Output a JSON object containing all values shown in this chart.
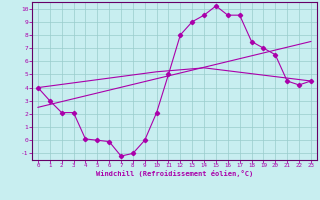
{
  "xlabel": "Windchill (Refroidissement éolien,°C)",
  "bg_color": "#c8eef0",
  "line_color": "#aa00aa",
  "grid_color": "#99cccc",
  "axis_color": "#660066",
  "xlim": [
    -0.5,
    23.5
  ],
  "ylim": [
    -1.5,
    10.5
  ],
  "xtick_min": 0,
  "xtick_max": 23,
  "yticks": [
    -1,
    0,
    1,
    2,
    3,
    4,
    5,
    6,
    7,
    8,
    9,
    10
  ],
  "line1_x": [
    0,
    1,
    2,
    3,
    4,
    5,
    6,
    7,
    8,
    9,
    10,
    11,
    12,
    13,
    14,
    15,
    16,
    17,
    18,
    19,
    20,
    21,
    22,
    23
  ],
  "line1_y": [
    4.0,
    3.0,
    2.1,
    2.1,
    0.1,
    0.0,
    -0.1,
    -1.2,
    -1.0,
    0.0,
    2.1,
    5.0,
    8.0,
    9.0,
    9.5,
    10.2,
    9.5,
    9.5,
    7.5,
    7.0,
    6.5,
    4.5,
    4.2,
    4.5
  ],
  "line2_x": [
    0,
    10,
    14,
    23
  ],
  "line2_y": [
    4.0,
    5.2,
    5.5,
    4.5
  ],
  "line3_x": [
    0,
    23
  ],
  "line3_y": [
    2.5,
    7.5
  ]
}
